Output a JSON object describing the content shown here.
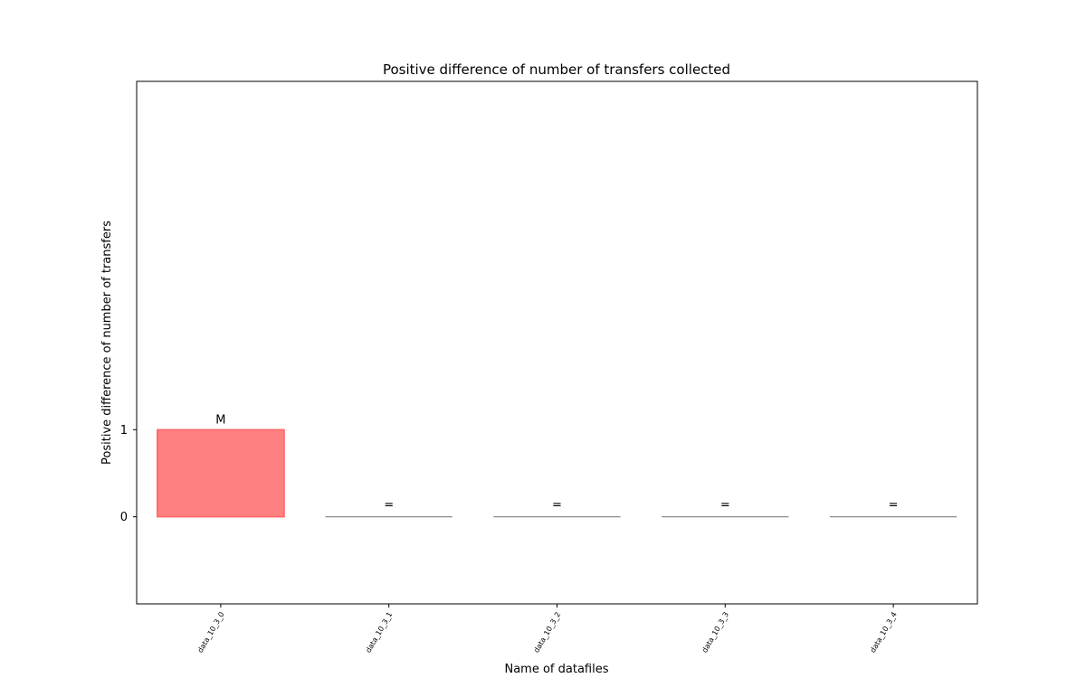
{
  "chart_data": {
    "type": "bar",
    "title": "Positive difference of number of transfers collected",
    "xlabel": "Name of datafiles",
    "ylabel": "Positive difference of number of transfers",
    "categories": [
      "data_10_3_0",
      "data_10_3_1",
      "data_10_3_2",
      "data_10_3_3",
      "data_10_3_4"
    ],
    "values": [
      1,
      0,
      0,
      0,
      0
    ],
    "bar_labels": [
      "M",
      "=",
      "=",
      "=",
      "="
    ],
    "yticks": [
      0,
      1
    ],
    "ylim": [
      -1,
      5
    ],
    "grid": false,
    "colors": {
      "positive_bar": "#ff8080",
      "positive_edge": "#ff6666",
      "zero_bar": "#808080",
      "axis": "#000000"
    }
  }
}
